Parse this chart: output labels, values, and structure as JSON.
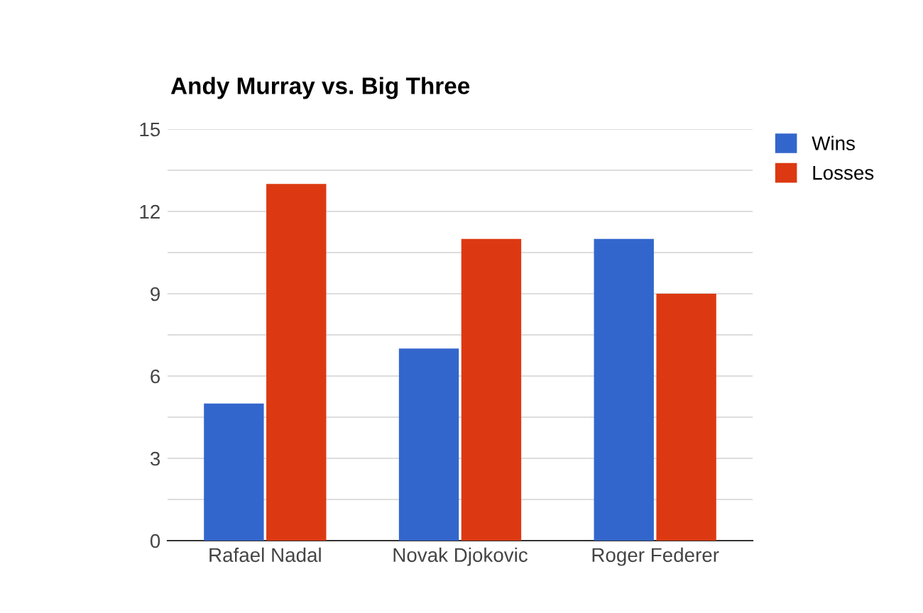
{
  "chart_data": {
    "type": "bar",
    "title": "Andy Murray vs. Big Three",
    "categories": [
      "Rafael Nadal",
      "Novak Djokovic",
      "Roger Federer"
    ],
    "series": [
      {
        "name": "Wins",
        "color": "#3366cc",
        "values": [
          5,
          7,
          11
        ]
      },
      {
        "name": "Losses",
        "color": "#dc3912",
        "values": [
          13,
          11,
          9
        ]
      }
    ],
    "ylim": [
      0,
      15
    ],
    "yticks": [
      0,
      {
        "value": 1.5,
        "label": null
      },
      3,
      {
        "value": 4.5,
        "label": null
      },
      6,
      {
        "value": 7.5,
        "label": null
      },
      9,
      {
        "value": 10.5,
        "label": null
      },
      12,
      {
        "value": 13.5,
        "label": null
      },
      15
    ],
    "grid": "y",
    "legend": "top right"
  }
}
